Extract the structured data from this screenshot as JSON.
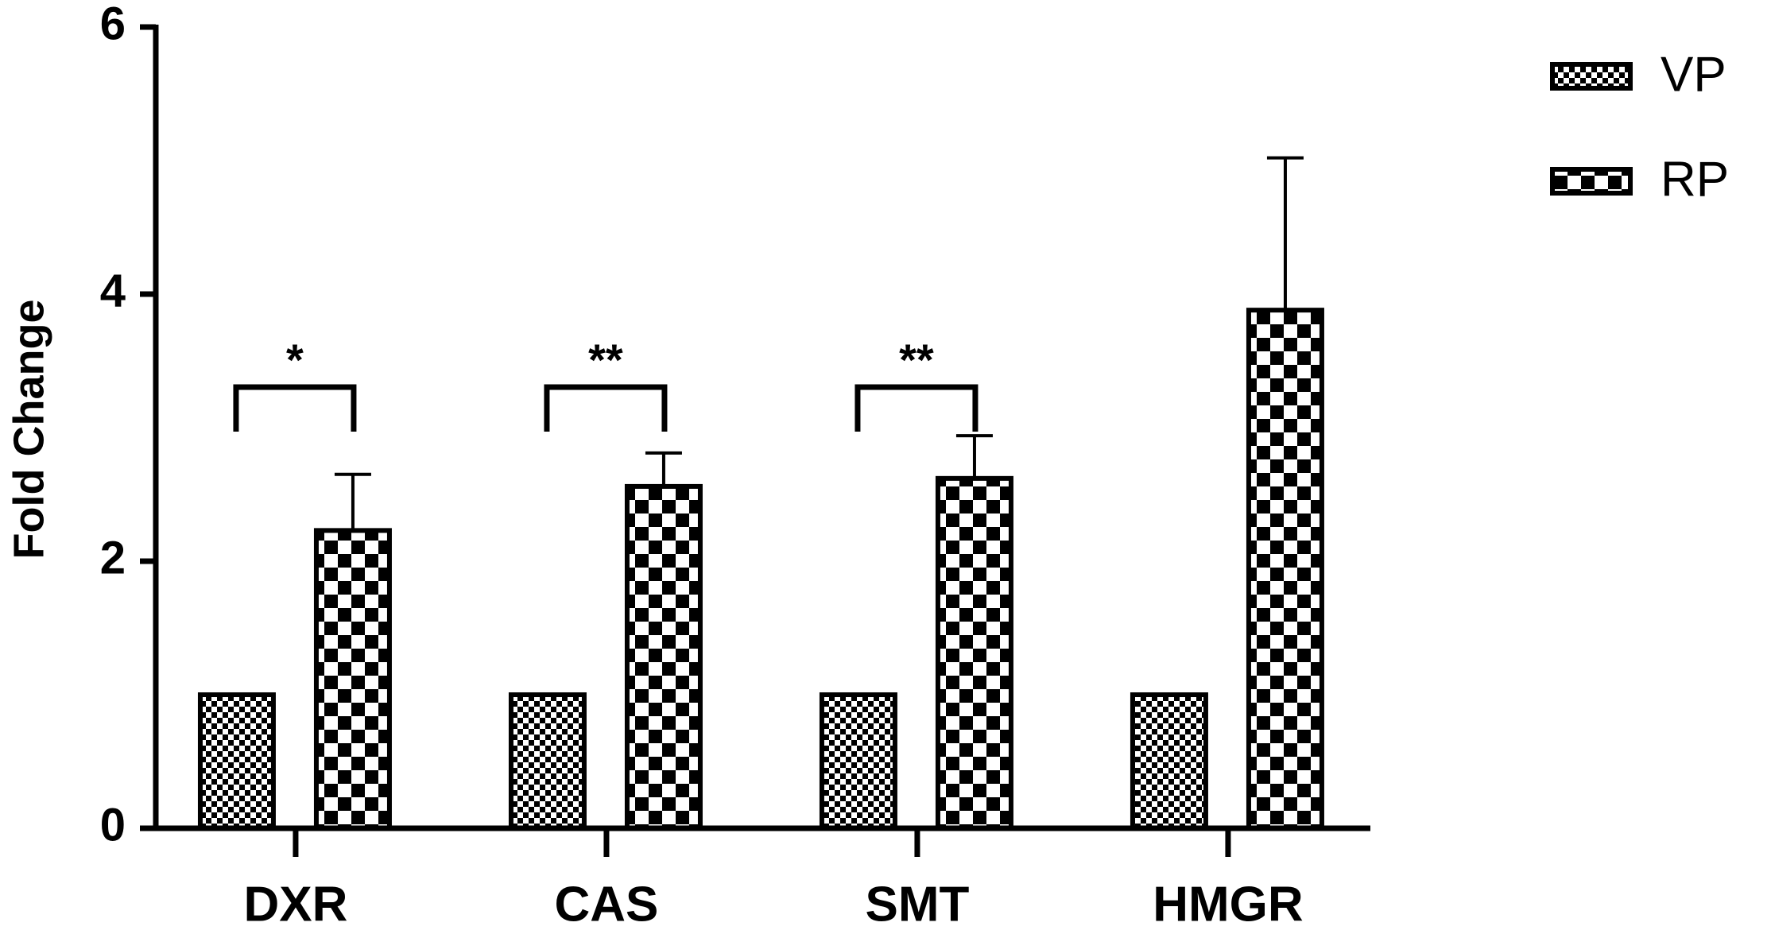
{
  "chart_data": {
    "type": "bar",
    "y_label": "Fold Change",
    "categories": [
      "DXR",
      "CAS",
      "SMT",
      "HMGR"
    ],
    "series": [
      {
        "name": "VP",
        "color": "#000000",
        "values": [
          1,
          1,
          1,
          1
        ]
      },
      {
        "name": "RP",
        "color": "#000000",
        "values": [
          2.23,
          2.56,
          2.62,
          3.88
        ],
        "errors": [
          0.42,
          0.25,
          0.32,
          1.14
        ]
      }
    ],
    "significance": [
      "*",
      "**",
      "**",
      null
    ],
    "ylim": [
      0,
      6
    ],
    "yticks": [
      0,
      2,
      4,
      6
    ],
    "grid": false,
    "legend": "top-right"
  }
}
